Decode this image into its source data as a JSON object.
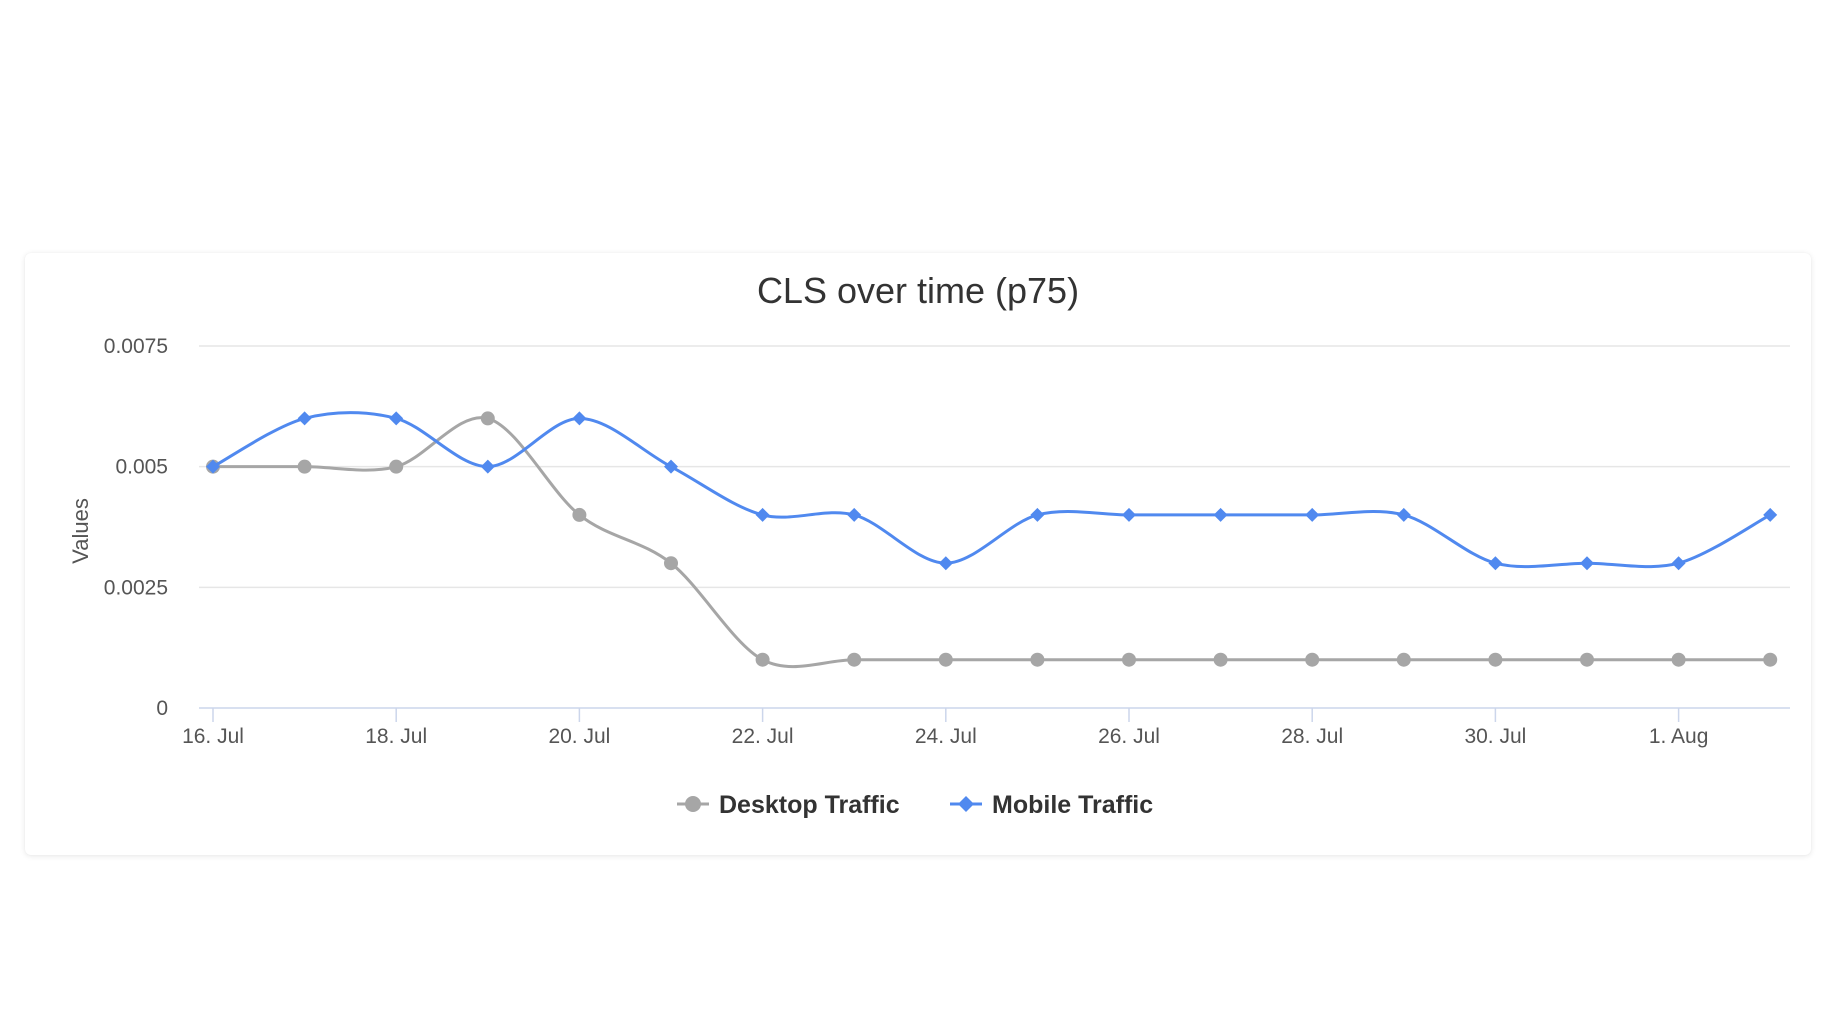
{
  "chart_data": {
    "type": "line",
    "title": "CLS over time (p75)",
    "xlabel": "",
    "ylabel": "Values",
    "x": [
      "2024-07-16",
      "2024-07-17",
      "2024-07-18",
      "2024-07-19",
      "2024-07-20",
      "2024-07-21",
      "2024-07-22",
      "2024-07-23",
      "2024-07-24",
      "2024-07-25",
      "2024-07-26",
      "2024-07-27",
      "2024-07-28",
      "2024-07-29",
      "2024-07-30",
      "2024-07-31",
      "2024-08-01",
      "2024-08-02"
    ],
    "x_tick_labels": [
      "16. Jul",
      "18. Jul",
      "20. Jul",
      "22. Jul",
      "24. Jul",
      "26. Jul",
      "28. Jul",
      "30. Jul",
      "1. Aug"
    ],
    "y_tick_labels": [
      "0",
      "0.0025",
      "0.005",
      "0.0075"
    ],
    "ylim": [
      0,
      0.0075
    ],
    "grid": true,
    "legend_position": "bottom-center",
    "series": [
      {
        "name": "Desktop Traffic",
        "color": "#a6a6a6",
        "marker": "circle",
        "values": [
          0.005,
          0.005,
          0.005,
          0.006,
          0.004,
          0.003,
          0.001,
          0.001,
          0.001,
          0.001,
          0.001,
          0.001,
          0.001,
          0.001,
          0.001,
          0.001,
          0.001,
          0.001
        ]
      },
      {
        "name": "Mobile Traffic",
        "color": "#5089ef",
        "marker": "diamond",
        "values": [
          0.005,
          0.006,
          0.006,
          0.005,
          0.006,
          0.005,
          0.004,
          0.004,
          0.003,
          0.004,
          0.004,
          0.004,
          0.004,
          0.004,
          0.003,
          0.003,
          0.003,
          0.004
        ]
      }
    ]
  }
}
